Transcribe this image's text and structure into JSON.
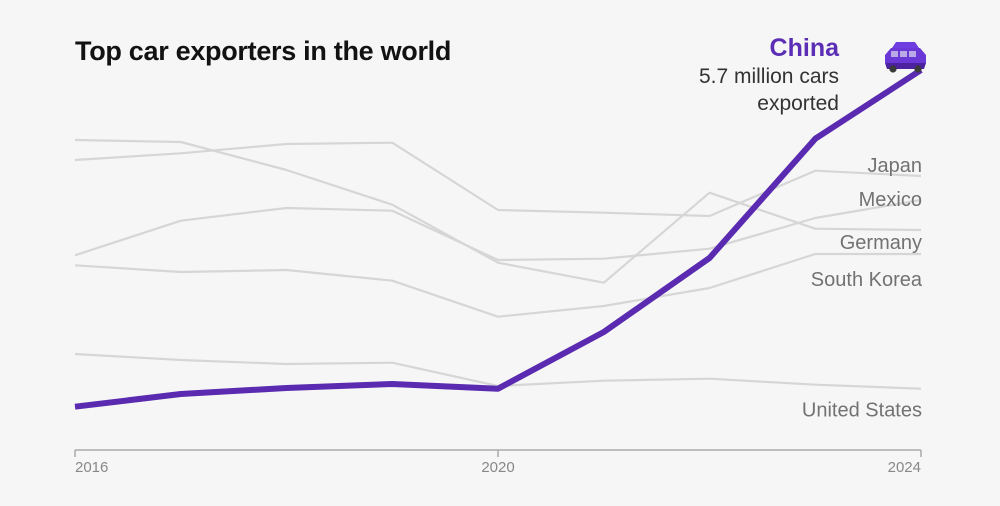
{
  "chart_data": {
    "type": "line",
    "title": "Top car exporters in the world",
    "xlabel": "",
    "ylabel": "",
    "unit": "million cars exported",
    "x": [
      2016,
      2017,
      2018,
      2019,
      2020,
      2021,
      2022,
      2023,
      2024
    ],
    "x_ticks": [
      "2016",
      "2020",
      "2024"
    ],
    "ylim": [
      0,
      5.7
    ],
    "grid": false,
    "legend": "direct labels at right end of lines",
    "highlight": {
      "name": "China",
      "annotation_lines": [
        "5.7 million cars",
        "exported"
      ],
      "color": "#5a2ab0",
      "marker_icon": "car-icon"
    },
    "series": [
      {
        "name": "China",
        "highlight": true,
        "values": [
          0.65,
          0.84,
          0.93,
          0.99,
          0.92,
          1.77,
          2.88,
          4.67,
          5.7
        ]
      },
      {
        "name": "Japan",
        "highlight": false,
        "values": [
          4.35,
          4.45,
          4.59,
          4.61,
          3.6,
          3.56,
          3.51,
          4.19,
          4.11
        ]
      },
      {
        "name": "Mexico",
        "highlight": false,
        "values": [
          2.92,
          3.44,
          3.63,
          3.59,
          2.85,
          2.87,
          3.02,
          3.48,
          3.75
        ]
      },
      {
        "name": "Germany",
        "highlight": false,
        "values": [
          4.65,
          4.62,
          4.2,
          3.68,
          2.81,
          2.51,
          3.86,
          3.32,
          3.3
        ]
      },
      {
        "name": "South Korea",
        "highlight": false,
        "values": [
          2.77,
          2.67,
          2.7,
          2.54,
          2.0,
          2.16,
          2.43,
          2.94,
          2.94
        ]
      },
      {
        "name": "United States",
        "highlight": false,
        "values": [
          1.44,
          1.35,
          1.29,
          1.31,
          0.96,
          1.04,
          1.07,
          0.98,
          0.92
        ]
      }
    ]
  },
  "colors": {
    "background": "#f6f6f6",
    "highlight": "#5a2ab0",
    "muted_line": "#d6d6d6",
    "label_text": "#727272"
  }
}
